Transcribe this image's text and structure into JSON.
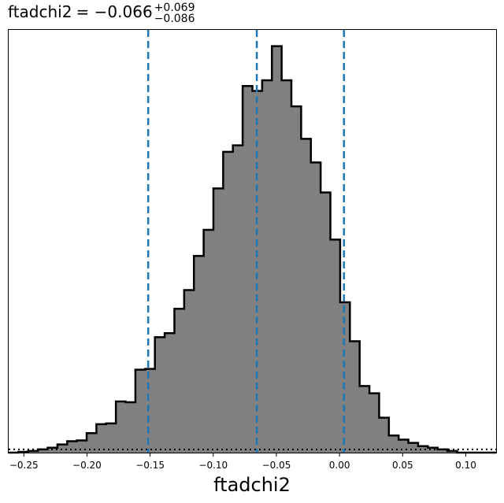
{
  "chart_data": {
    "type": "histogram",
    "title": {
      "parameter": "ftadchi2",
      "value": "−0.066",
      "upper": "+0.069",
      "lower": "−0.086"
    },
    "xlabel": "ftadchi2",
    "xlim": [
      -0.262,
      0.124
    ],
    "ylim": [
      0,
      520
    ],
    "x_ticks": [
      {
        "value": -0.25,
        "label": "−0.25"
      },
      {
        "value": -0.2,
        "label": "−0.20"
      },
      {
        "value": -0.15,
        "label": "−0.15"
      },
      {
        "value": -0.1,
        "label": "−0.10"
      },
      {
        "value": -0.05,
        "label": "−0.05"
      },
      {
        "value": 0.0,
        "label": "0.00"
      },
      {
        "value": 0.05,
        "label": "0.05"
      },
      {
        "value": 0.1,
        "label": "0.10"
      }
    ],
    "bin_start": -0.262,
    "bin_width": 0.00772,
    "counts": [
      0,
      1,
      2,
      4,
      6,
      10,
      14,
      15,
      24,
      35,
      36,
      63,
      62,
      102,
      103,
      142,
      147,
      177,
      200,
      242,
      274,
      325,
      370,
      378,
      451,
      445,
      458,
      500,
      458,
      426,
      386,
      357,
      320,
      262,
      185,
      137,
      82,
      73,
      43,
      21,
      16,
      12,
      8,
      6,
      4,
      2,
      0,
      0,
      0,
      0
    ],
    "quantile_lines": [
      -0.1515,
      -0.0655,
      0.0035
    ],
    "reference_level": 4,
    "colors": {
      "fill": "#808080",
      "step": "#000000",
      "quantile": "#1f77b4",
      "reference": "#000000"
    },
    "grid": false,
    "y_ticks_visible": false
  }
}
